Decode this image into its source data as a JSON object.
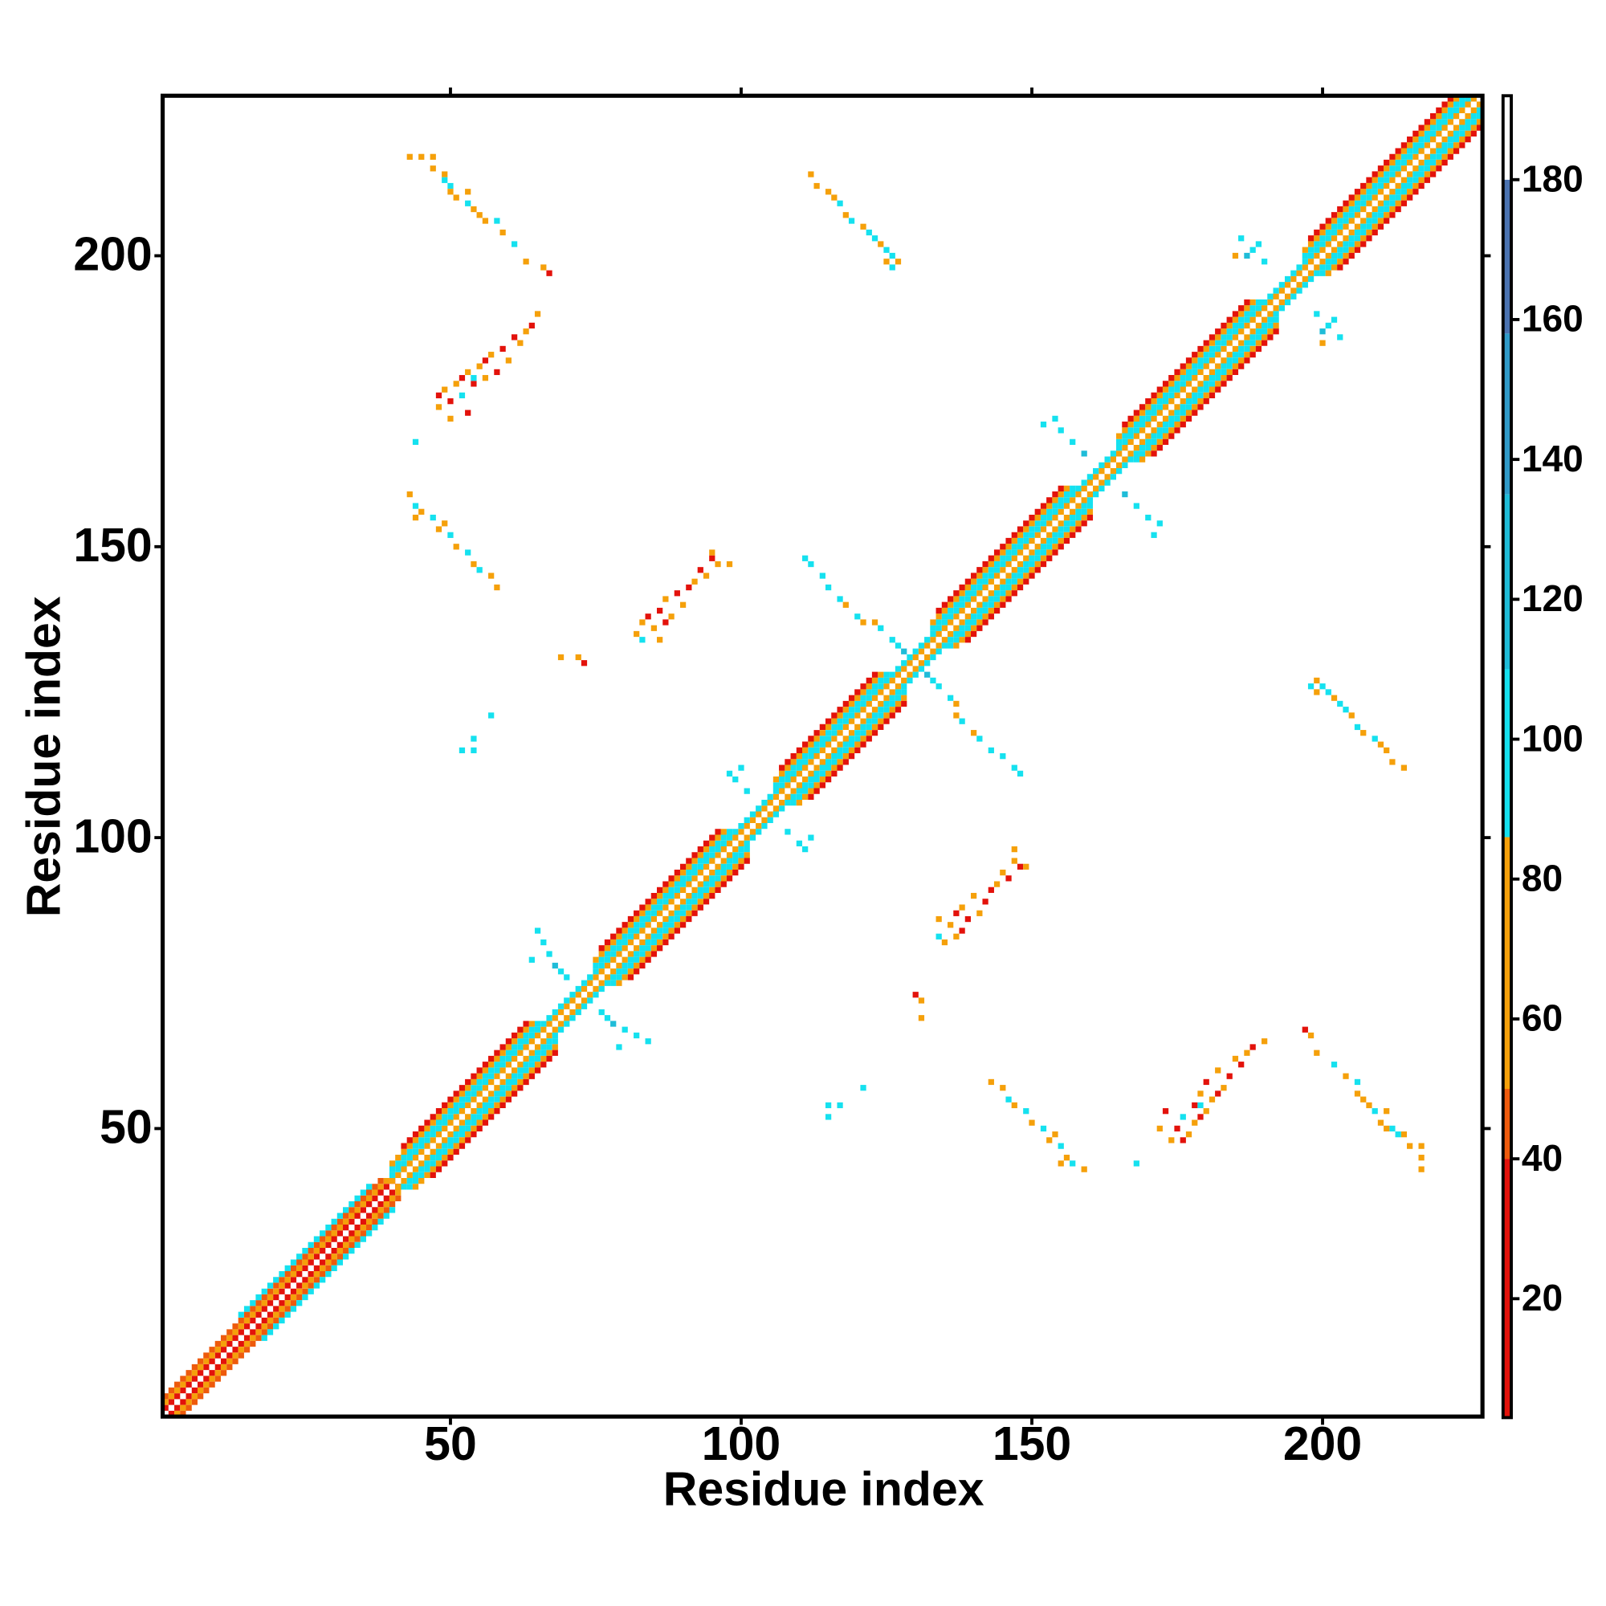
{
  "chart_data": {
    "type": "heatmap",
    "xlabel": "Residue index",
    "ylabel": "Residue index",
    "xlim": [
      0.5,
      227.5
    ],
    "ylim": [
      0.5,
      227.5
    ],
    "xticks": [
      50,
      100,
      150,
      200
    ],
    "yticks": [
      50,
      100,
      150,
      200
    ],
    "clim": [
      3,
      192
    ],
    "cticks": [
      20,
      40,
      60,
      80,
      100,
      120,
      140,
      160,
      180
    ],
    "colormap": [
      {
        "from": 3,
        "to": 40,
        "color": "#e3120b"
      },
      {
        "from": 40,
        "to": 50,
        "color": "#ee5a0c"
      },
      {
        "from": 50,
        "to": 86,
        "color": "#f5a00a"
      },
      {
        "from": 86,
        "to": 110,
        "color": "#15e1ef"
      },
      {
        "from": 110,
        "to": 135,
        "color": "#1fbcd8"
      },
      {
        "from": 135,
        "to": 158,
        "color": "#2f9ac8"
      },
      {
        "from": 158,
        "to": 180,
        "color": "#4a72b0"
      },
      {
        "from": 180,
        "to": 192,
        "color": "#ffffff"
      }
    ],
    "symmetric": true,
    "diagonal_runs": [
      [
        1,
        1,
        40,
        30
      ],
      [
        2,
        1,
        40,
        70
      ],
      [
        3,
        1,
        38,
        45
      ],
      [
        4,
        14,
        36,
        95
      ],
      [
        1,
        40,
        226,
        70
      ],
      [
        2,
        40,
        225,
        100
      ],
      [
        3,
        40,
        65,
        95
      ],
      [
        3,
        75,
        98,
        95
      ],
      [
        3,
        106,
        125,
        95
      ],
      [
        3,
        133,
        157,
        95
      ],
      [
        3,
        165,
        189,
        95
      ],
      [
        3,
        197,
        224,
        95
      ],
      [
        4,
        40,
        64,
        65
      ],
      [
        4,
        75,
        97,
        65
      ],
      [
        4,
        106,
        124,
        65
      ],
      [
        4,
        133,
        156,
        65
      ],
      [
        4,
        165,
        188,
        65
      ],
      [
        4,
        197,
        223,
        65
      ],
      [
        5,
        42,
        63,
        35
      ],
      [
        5,
        76,
        96,
        35
      ],
      [
        5,
        107,
        123,
        35
      ],
      [
        5,
        134,
        155,
        35
      ],
      [
        5,
        166,
        187,
        35
      ],
      [
        5,
        198,
        222,
        35
      ]
    ],
    "cells": [
      [
        66,
        82,
        100
      ],
      [
        67,
        80,
        100
      ],
      [
        68,
        78,
        110
      ],
      [
        69,
        77,
        100
      ],
      [
        70,
        76,
        105
      ],
      [
        65,
        84,
        100
      ],
      [
        64,
        79,
        100
      ],
      [
        98,
        111,
        100
      ],
      [
        99,
        110,
        100
      ],
      [
        101,
        108,
        105
      ],
      [
        100,
        112,
        100
      ],
      [
        127,
        133,
        100
      ],
      [
        126,
        134,
        100
      ],
      [
        128,
        132,
        110
      ],
      [
        152,
        171,
        100
      ],
      [
        155,
        170,
        100
      ],
      [
        157,
        168,
        105
      ],
      [
        159,
        166,
        110
      ],
      [
        154,
        172,
        100
      ],
      [
        186,
        203,
        100
      ],
      [
        188,
        201,
        100
      ],
      [
        190,
        199,
        105
      ],
      [
        187,
        200,
        110
      ],
      [
        189,
        202,
        100
      ],
      [
        185,
        200,
        65
      ],
      [
        43,
        217,
        70
      ],
      [
        45,
        217,
        70
      ],
      [
        47,
        217,
        70
      ],
      [
        47,
        215,
        60
      ],
      [
        49,
        214,
        70
      ],
      [
        49,
        213,
        100
      ],
      [
        50,
        212,
        100
      ],
      [
        50,
        211,
        70
      ],
      [
        51,
        210,
        65
      ],
      [
        53,
        211,
        70
      ],
      [
        53,
        209,
        100
      ],
      [
        54,
        208,
        70
      ],
      [
        55,
        207,
        65
      ],
      [
        56,
        206,
        70
      ],
      [
        58,
        206,
        100
      ],
      [
        59,
        204,
        70
      ],
      [
        61,
        202,
        100
      ],
      [
        63,
        199,
        70
      ],
      [
        66,
        198,
        60
      ],
      [
        67,
        197,
        30
      ],
      [
        48,
        174,
        70
      ],
      [
        48,
        176,
        30
      ],
      [
        49,
        177,
        70
      ],
      [
        50,
        175,
        30
      ],
      [
        51,
        178,
        60
      ],
      [
        52,
        176,
        100
      ],
      [
        52,
        179,
        30
      ],
      [
        53,
        180,
        70
      ],
      [
        54,
        178,
        30
      ],
      [
        55,
        181,
        60
      ],
      [
        56,
        182,
        30
      ],
      [
        56,
        179,
        70
      ],
      [
        57,
        183,
        70
      ],
      [
        58,
        180,
        35
      ],
      [
        59,
        184,
        30
      ],
      [
        60,
        182,
        70
      ],
      [
        61,
        186,
        30
      ],
      [
        62,
        185,
        70
      ],
      [
        63,
        187,
        65
      ],
      [
        64,
        188,
        30
      ],
      [
        65,
        190,
        70
      ],
      [
        50,
        172,
        70
      ],
      [
        53,
        173,
        30
      ],
      [
        54,
        179,
        100
      ],
      [
        44,
        168,
        100
      ],
      [
        43,
        159,
        70
      ],
      [
        44,
        157,
        100
      ],
      [
        44,
        155,
        70
      ],
      [
        45,
        156,
        70
      ],
      [
        47,
        155,
        100
      ],
      [
        48,
        153,
        70
      ],
      [
        49,
        154,
        70
      ],
      [
        50,
        152,
        100
      ],
      [
        51,
        150,
        70
      ],
      [
        53,
        149,
        100
      ],
      [
        54,
        147,
        70
      ],
      [
        55,
        146,
        100
      ],
      [
        57,
        145,
        70
      ],
      [
        58,
        143,
        70
      ],
      [
        52,
        115,
        100
      ],
      [
        54,
        115,
        100
      ],
      [
        54,
        117,
        100
      ],
      [
        57,
        121,
        100
      ],
      [
        69,
        131,
        70
      ],
      [
        72,
        131,
        70
      ],
      [
        73,
        130,
        30
      ],
      [
        82,
        135,
        70
      ],
      [
        83,
        137,
        65
      ],
      [
        84,
        138,
        30
      ],
      [
        85,
        136,
        70
      ],
      [
        86,
        139,
        30
      ],
      [
        87,
        141,
        70
      ],
      [
        87,
        137,
        30
      ],
      [
        88,
        138,
        70
      ],
      [
        89,
        142,
        30
      ],
      [
        90,
        140,
        70
      ],
      [
        91,
        143,
        30
      ],
      [
        92,
        144,
        70
      ],
      [
        93,
        146,
        30
      ],
      [
        94,
        145,
        70
      ],
      [
        95,
        148,
        30
      ],
      [
        96,
        147,
        65
      ],
      [
        98,
        147,
        70
      ],
      [
        95,
        149,
        70
      ],
      [
        86,
        134,
        70
      ],
      [
        83,
        134,
        100
      ],
      [
        112,
        214,
        70
      ],
      [
        113,
        212,
        70
      ],
      [
        115,
        211,
        70
      ],
      [
        116,
        210,
        70
      ],
      [
        117,
        209,
        100
      ],
      [
        118,
        207,
        70
      ],
      [
        119,
        206,
        100
      ],
      [
        121,
        205,
        70
      ],
      [
        122,
        204,
        100
      ],
      [
        123,
        203,
        100
      ],
      [
        124,
        202,
        70
      ],
      [
        125,
        201,
        100
      ],
      [
        126,
        200,
        100
      ],
      [
        126,
        198,
        100
      ],
      [
        127,
        199,
        70
      ],
      [
        125,
        199,
        70
      ],
      [
        111,
        148,
        100
      ],
      [
        112,
        147,
        100
      ],
      [
        114,
        145,
        100
      ],
      [
        115,
        143,
        100
      ],
      [
        117,
        141,
        100
      ],
      [
        118,
        140,
        70
      ],
      [
        120,
        138,
        100
      ],
      [
        121,
        137,
        70
      ],
      [
        123,
        137,
        70
      ],
      [
        124,
        136,
        100
      ]
    ]
  }
}
